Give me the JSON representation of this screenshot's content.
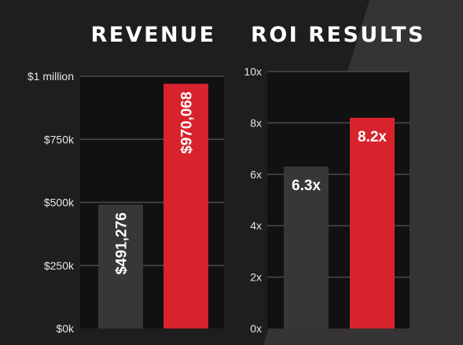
{
  "colors": {
    "background": "#1e1e1e",
    "background_light": "#353334",
    "plot_background": "#111111",
    "gridline": "#4a4a4a",
    "text": "#ffffff",
    "axis_text": "#e6e6e6",
    "bar_gray": "#383637",
    "bar_red": "#d7232c"
  },
  "chart_data": [
    {
      "type": "bar",
      "title": "REVENUE",
      "categories": [
        "",
        ""
      ],
      "values": [
        491276,
        970068
      ],
      "data_labels": [
        "$491,276",
        "$970,068"
      ],
      "bar_colors": [
        "#383637",
        "#d7232c"
      ],
      "ylim": [
        0,
        1000000
      ],
      "yticks": [
        0,
        250000,
        500000,
        750000,
        1000000
      ],
      "ytick_labels": [
        "$0k",
        "$250k",
        "$500k",
        "$750k",
        "$1 million"
      ],
      "grid": true,
      "data_label_orientation": "vertical"
    },
    {
      "type": "bar",
      "title": "ROI RESULTS",
      "categories": [
        "",
        ""
      ],
      "values": [
        6.3,
        8.2
      ],
      "data_labels": [
        "6.3x",
        "8.2x"
      ],
      "bar_colors": [
        "#383637",
        "#d7232c"
      ],
      "ylim": [
        0,
        10
      ],
      "yticks": [
        0,
        2,
        4,
        6,
        8,
        10
      ],
      "ytick_labels": [
        "0x",
        "2x",
        "4x",
        "6x",
        "8x",
        "10x"
      ],
      "grid": true,
      "data_label_orientation": "horizontal"
    }
  ]
}
